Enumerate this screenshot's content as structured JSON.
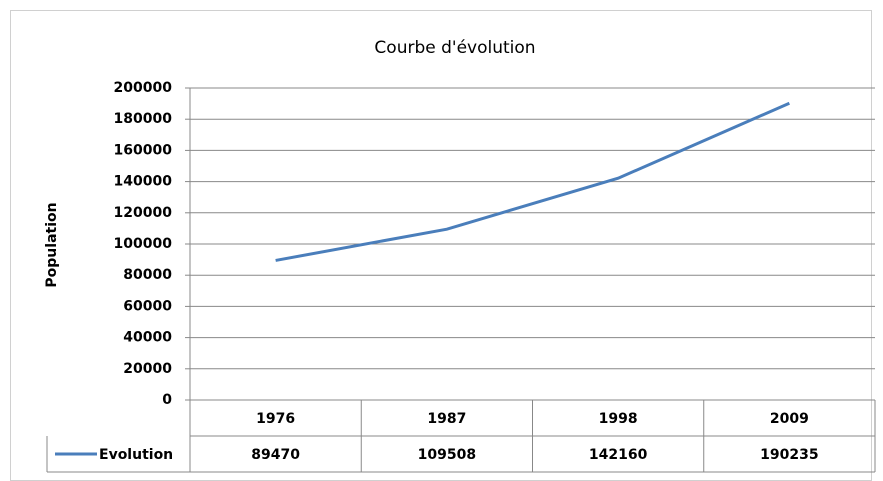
{
  "chart_data": {
    "type": "line",
    "title": "Courbe d'évolution",
    "y_label": "Population",
    "categories": [
      "1976",
      "1987",
      "1998",
      "2009"
    ],
    "series": [
      {
        "name": "Evolution",
        "color": "#4a7ebb",
        "values": [
          89470,
          109508,
          142160,
          190235
        ]
      }
    ],
    "ylim": [
      0,
      200000
    ],
    "yticks": [
      0,
      20000,
      40000,
      60000,
      80000,
      100000,
      120000,
      140000,
      160000,
      180000,
      200000
    ],
    "grid": true,
    "data_table": true
  }
}
